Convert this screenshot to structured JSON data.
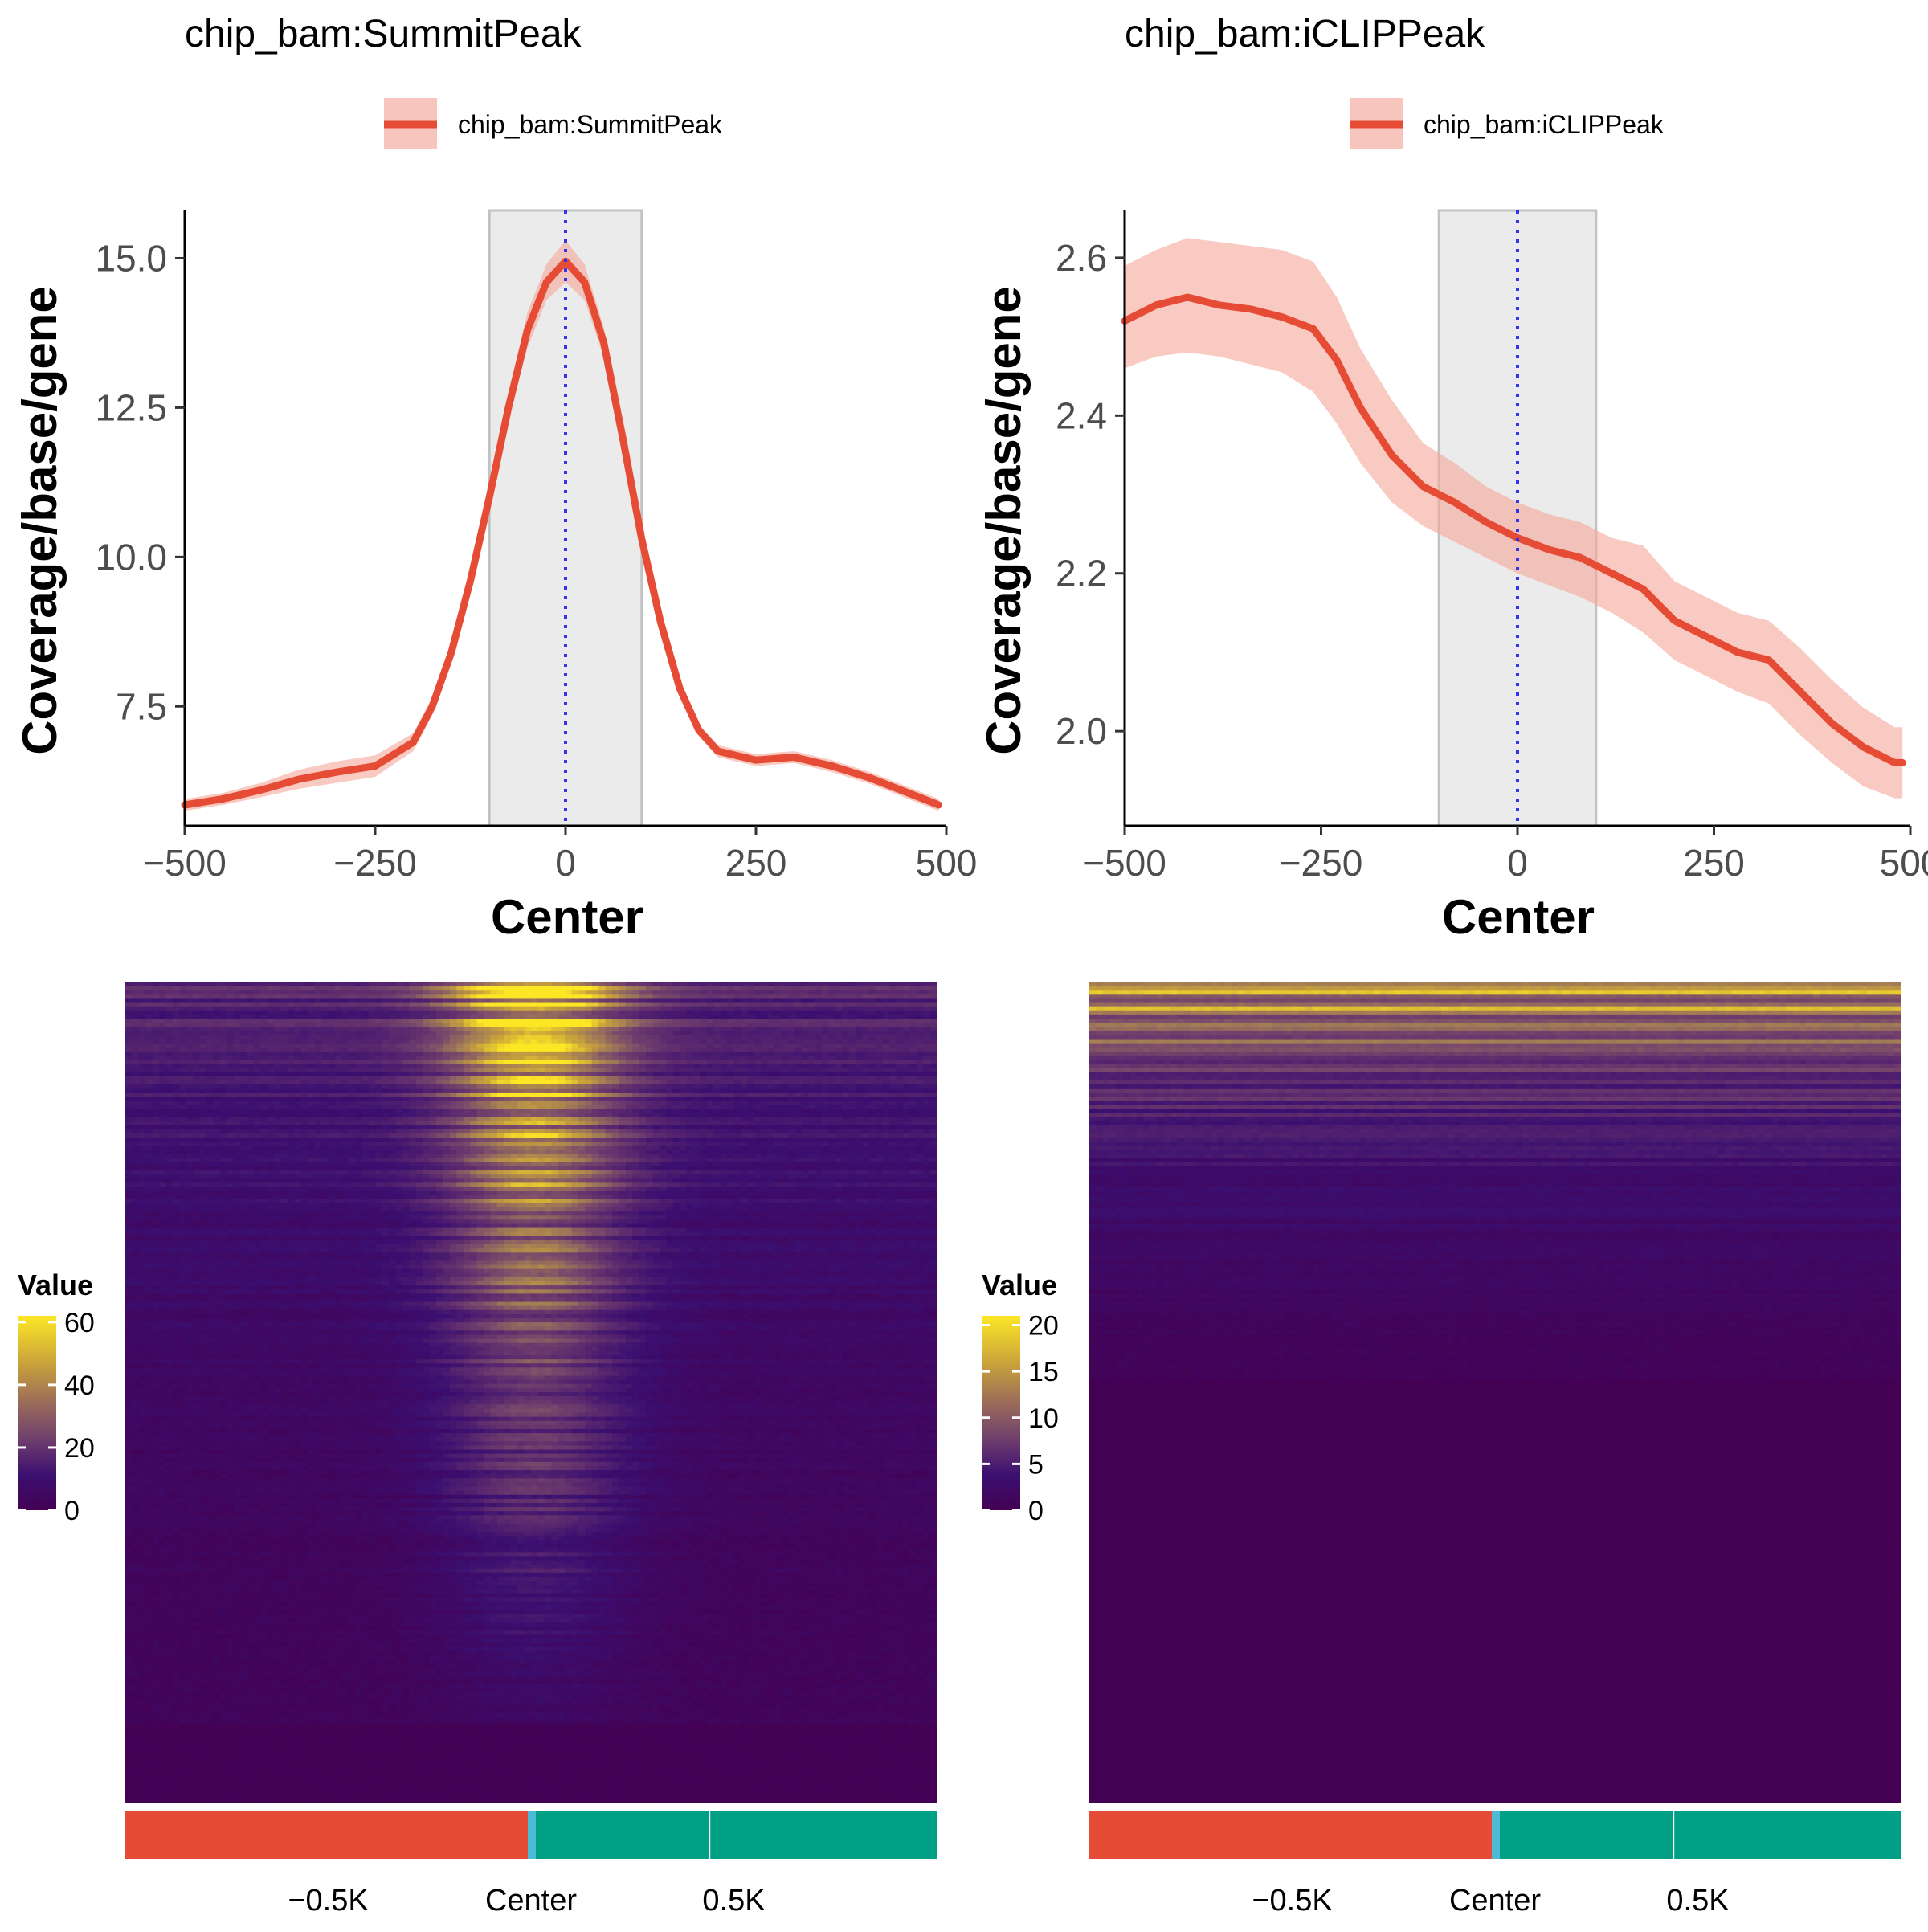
{
  "chart_data": [
    {
      "type": "line",
      "title": "chip_bam:SummitPeak",
      "legend": {
        "label": "chip_bam:SummitPeak",
        "placement": "top"
      },
      "xlabel": "Center",
      "ylabel": "Coverage/base/gene",
      "xlim": [
        -500,
        500
      ],
      "ylim": [
        5.5,
        15.8
      ],
      "xticks": [
        "−500",
        "−250",
        "0",
        "250",
        "500"
      ],
      "xtick_values": [
        -500,
        -250,
        0,
        250,
        500
      ],
      "yticks": [
        "7.5",
        "10.0",
        "12.5",
        "15.0"
      ],
      "ytick_values": [
        7.5,
        10.0,
        12.5,
        15.0
      ],
      "highlight_band": [
        -100,
        100
      ],
      "center_line": 0,
      "series": [
        {
          "name": "chip_bam:SummitPeak",
          "color": "#e64b35",
          "ribbon_color": "#f4a699",
          "x": [
            -500,
            -450,
            -400,
            -350,
            -300,
            -250,
            -200,
            -175,
            -150,
            -125,
            -100,
            -75,
            -50,
            -25,
            0,
            25,
            50,
            75,
            100,
            125,
            150,
            175,
            200,
            250,
            300,
            350,
            400,
            450,
            490
          ],
          "y": [
            5.85,
            5.95,
            6.1,
            6.28,
            6.4,
            6.5,
            6.9,
            7.5,
            8.4,
            9.6,
            11.0,
            12.5,
            13.8,
            14.6,
            14.95,
            14.6,
            13.6,
            12.0,
            10.3,
            8.9,
            7.8,
            7.1,
            6.75,
            6.6,
            6.65,
            6.5,
            6.3,
            6.05,
            5.85
          ],
          "lower": [
            5.75,
            5.85,
            5.98,
            6.12,
            6.22,
            6.32,
            6.75,
            7.35,
            8.25,
            9.45,
            10.85,
            12.3,
            13.5,
            14.3,
            14.6,
            14.3,
            13.35,
            11.8,
            10.15,
            8.75,
            7.68,
            7.0,
            6.65,
            6.5,
            6.55,
            6.4,
            6.2,
            5.95,
            5.75
          ],
          "upper": [
            5.95,
            6.05,
            6.22,
            6.44,
            6.58,
            6.68,
            7.05,
            7.65,
            8.55,
            9.75,
            11.15,
            12.7,
            14.1,
            14.9,
            15.3,
            14.9,
            13.85,
            12.2,
            10.45,
            9.05,
            7.92,
            7.2,
            6.85,
            6.7,
            6.75,
            6.6,
            6.4,
            6.15,
            5.95
          ]
        }
      ]
    },
    {
      "type": "line",
      "title": "chip_bam:iCLIPPeak",
      "legend": {
        "label": "chip_bam:iCLIPPeak",
        "placement": "top"
      },
      "xlabel": "Center",
      "ylabel": "Coverage/base/gene",
      "xlim": [
        -500,
        500
      ],
      "ylim": [
        1.88,
        2.66
      ],
      "xticks": [
        "−500",
        "−250",
        "0",
        "250",
        "500"
      ],
      "xtick_values": [
        -500,
        -250,
        0,
        250,
        500
      ],
      "yticks": [
        "2.0",
        "2.2",
        "2.4",
        "2.6"
      ],
      "ytick_values": [
        2.0,
        2.2,
        2.4,
        2.6
      ],
      "highlight_band": [
        -100,
        100
      ],
      "center_line": 0,
      "series": [
        {
          "name": "chip_bam:iCLIPPeak",
          "color": "#e64b35",
          "ribbon_color": "#f4a699",
          "x": [
            -500,
            -460,
            -420,
            -380,
            -340,
            -300,
            -260,
            -230,
            -200,
            -160,
            -120,
            -80,
            -40,
            0,
            40,
            80,
            120,
            160,
            200,
            240,
            280,
            320,
            360,
            400,
            440,
            480,
            490
          ],
          "y": [
            2.52,
            2.54,
            2.55,
            2.54,
            2.535,
            2.525,
            2.51,
            2.47,
            2.41,
            2.35,
            2.31,
            2.29,
            2.265,
            2.245,
            2.23,
            2.22,
            2.2,
            2.18,
            2.14,
            2.12,
            2.1,
            2.09,
            2.05,
            2.01,
            1.98,
            1.96,
            1.96
          ],
          "lower": [
            2.46,
            2.475,
            2.48,
            2.475,
            2.465,
            2.455,
            2.43,
            2.39,
            2.34,
            2.29,
            2.26,
            2.24,
            2.22,
            2.2,
            2.185,
            2.17,
            2.15,
            2.125,
            2.09,
            2.07,
            2.05,
            2.035,
            1.995,
            1.96,
            1.93,
            1.915,
            1.915
          ],
          "upper": [
            2.59,
            2.61,
            2.625,
            2.62,
            2.615,
            2.61,
            2.595,
            2.55,
            2.485,
            2.42,
            2.365,
            2.34,
            2.31,
            2.29,
            2.275,
            2.265,
            2.245,
            2.235,
            2.19,
            2.17,
            2.15,
            2.14,
            2.105,
            2.065,
            2.03,
            2.005,
            2.005
          ]
        }
      ]
    },
    {
      "type": "heatmap",
      "colorbar": {
        "title": "Value",
        "range": [
          0,
          62
        ],
        "ticks": [
          "60",
          "40",
          "20",
          "0"
        ],
        "tick_values": [
          60,
          40,
          20,
          0
        ]
      },
      "colormap": [
        "#440154",
        "#3b0f70",
        "#5c2a6e",
        "#7a4a6b",
        "#a07a56",
        "#c8a13c",
        "#fde725"
      ],
      "xticks": [
        "−0.5K",
        "Center",
        "0.5K"
      ],
      "annotation_bar": {
        "upstream_color": "#e64b35",
        "center_color": "#4dbbd5",
        "downstream_color": "#00a087"
      },
      "rows": 200,
      "cols": 120,
      "profile": "summit",
      "seed": 7
    },
    {
      "type": "heatmap",
      "colorbar": {
        "title": "Value",
        "range": [
          0,
          21
        ],
        "ticks": [
          "20",
          "15",
          "10",
          "5",
          "0"
        ],
        "tick_values": [
          20,
          15,
          10,
          5,
          0
        ]
      },
      "colormap": [
        "#440154",
        "#3b0f70",
        "#5c2a6e",
        "#7a4a6b",
        "#a07a56",
        "#c8a13c",
        "#fde725"
      ],
      "xticks": [
        "−0.5K",
        "Center",
        "0.5K"
      ],
      "annotation_bar": {
        "upstream_color": "#e64b35",
        "center_color": "#4dbbd5",
        "downstream_color": "#00a087"
      },
      "rows": 200,
      "cols": 120,
      "profile": "iclip",
      "seed": 13
    }
  ]
}
